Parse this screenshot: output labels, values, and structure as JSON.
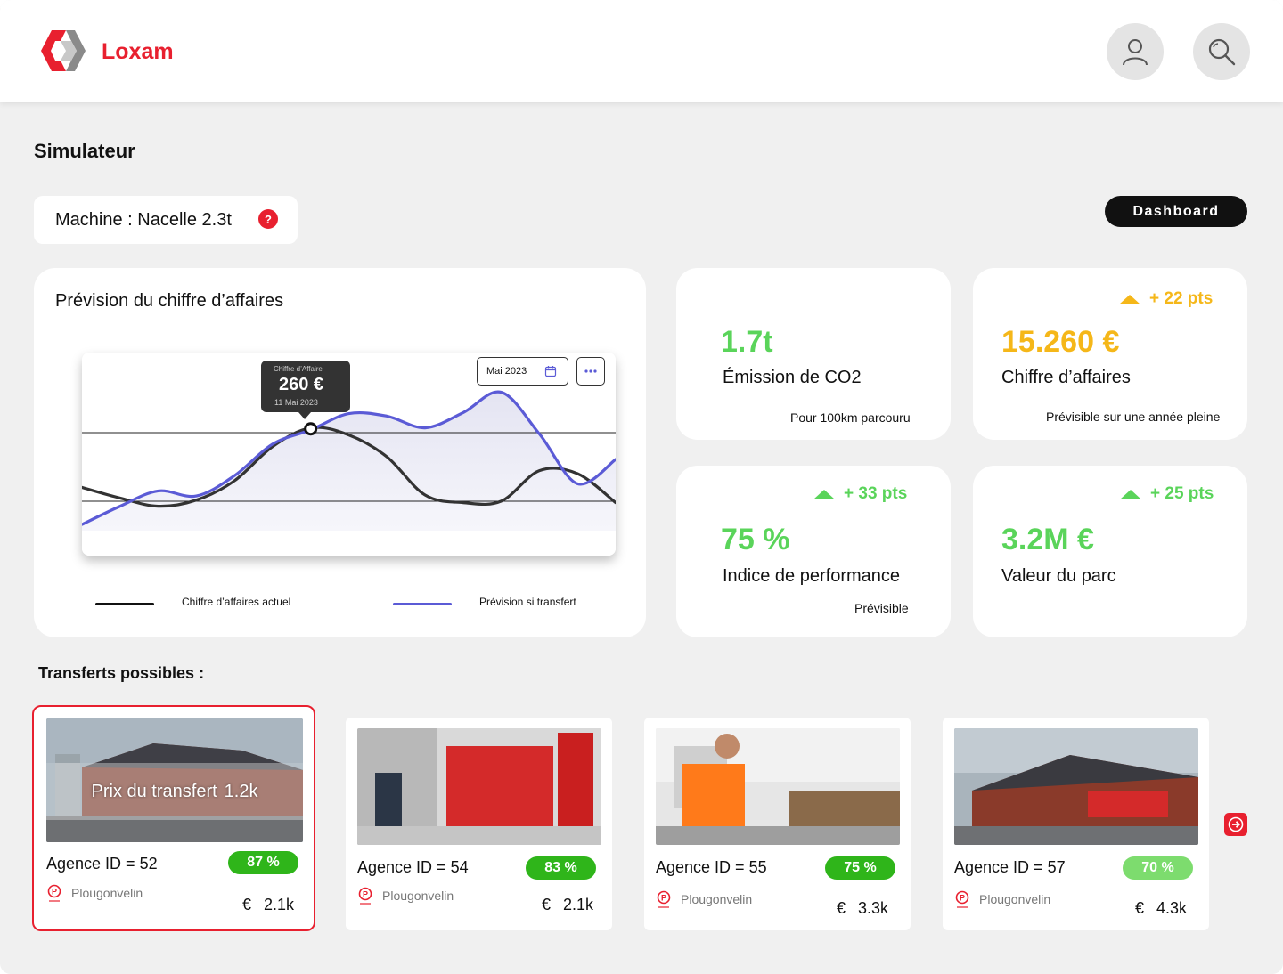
{
  "header": {
    "brand": "Loxam",
    "user_icon": "user-icon",
    "search_icon": "search-icon",
    "brand_color": "#e8202f"
  },
  "page": {
    "title": "Simulateur",
    "machine_label": "Machine : Nacelle 2.3t",
    "help_glyph": "?",
    "dashboard_button": "Dashboard"
  },
  "forecast": {
    "title": "Prévision du chiffre d’affaires",
    "date_picker": "Mai 2023",
    "tooltip": {
      "label": "Chiffre d’Affaire",
      "value": "260 €",
      "date": "11 Mai 2023"
    },
    "legend": {
      "current": "Chiffre d’affaires actuel",
      "transfer": "Prévision si transfert"
    }
  },
  "chart_data": {
    "type": "line",
    "title": "Prévision du chiffre d’affaires",
    "xlabel": "",
    "ylabel": "",
    "grid": true,
    "series": [
      {
        "name": "Chiffre d’affaires actuel",
        "color": "#333333",
        "values": [
          145,
          124,
          108,
          120,
          158,
          225,
          262,
          248,
          205,
          130,
          115,
          118,
          178,
          172,
          115
        ]
      },
      {
        "name": "Prévision si transfert",
        "color": "#5b5bd6",
        "values": [
          72,
          108,
          138,
          128,
          168,
          230,
          258,
          290,
          285,
          262,
          292,
          332,
          250,
          152,
          200
        ]
      }
    ],
    "highlight": {
      "value": 260,
      "label": "260 €",
      "date": "11 Mai 2023"
    }
  },
  "kpis": {
    "co2": {
      "value": "1.7t",
      "label": "Émission de CO2",
      "note": "Pour 100km parcouru"
    },
    "revenue": {
      "delta": "+ 22 pts",
      "value": "15.260 €",
      "label": "Chiffre d’affaires",
      "note": "Prévisible sur une année pleine"
    },
    "performance": {
      "delta": "+ 33 pts",
      "value": "75 %",
      "label": "Indice de performance",
      "note": "Prévisible"
    },
    "fleet": {
      "delta": "+ 25 pts",
      "value": "3.2M €",
      "label": "Valeur du parc"
    },
    "colors": {
      "green": "#5ad45a",
      "amber": "#f5b719"
    }
  },
  "transfers": {
    "title": "Transferts possibles :",
    "overlay": {
      "label": "Prix du transfert",
      "value": "1.2k"
    },
    "items": [
      {
        "title": "Agence ID = 52",
        "percent": "87 %",
        "city": "Plougonvelin",
        "currency": "€",
        "price": "2.1k",
        "badge_color": "#2fb51a"
      },
      {
        "title": "Agence ID = 54",
        "percent": "83 %",
        "city": "Plougonvelin",
        "currency": "€",
        "price": "2.1k",
        "badge_color": "#2fb51a"
      },
      {
        "title": "Agence ID = 55",
        "percent": "75 %",
        "city": "Plougonvelin",
        "currency": "€",
        "price": "3.3k",
        "badge_color": "#2fb51a"
      },
      {
        "title": "Agence ID = 57",
        "percent": "70 %",
        "city": "Plougonvelin",
        "currency": "€",
        "price": "4.3k",
        "badge_color": "#7ddc6e"
      }
    ]
  }
}
